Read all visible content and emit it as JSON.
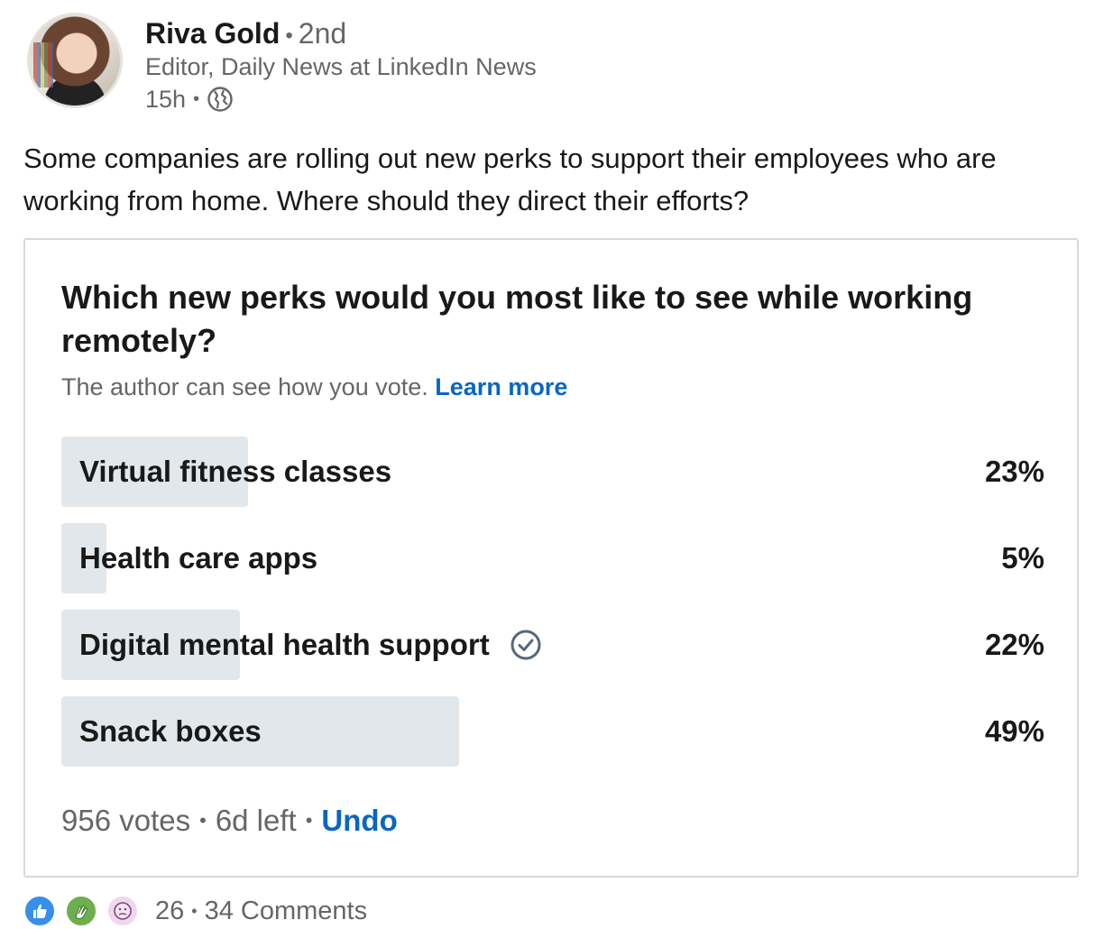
{
  "author": {
    "name": "Riva Gold",
    "degree": "2nd",
    "headline": "Editor, Daily News at LinkedIn News",
    "time": "15h",
    "visibility_icon": "globe-icon"
  },
  "post": {
    "text": "Some companies are rolling out new perks to support their employees who are working from home. Where should they direct their efforts?"
  },
  "poll": {
    "question": "Which new perks would you most like to see while working remotely?",
    "note": "The author can see how you vote.",
    "learn_more": "Learn more",
    "options": [
      {
        "label": "Virtual fitness classes",
        "percent_label": "23%",
        "percent": 23,
        "selected": false
      },
      {
        "label": "Health care apps",
        "percent_label": "5%",
        "percent": 5,
        "selected": false
      },
      {
        "label": "Digital mental health support",
        "percent_label": "22%",
        "percent": 22,
        "selected": true
      },
      {
        "label": "Snack boxes",
        "percent_label": "49%",
        "percent": 49,
        "selected": false
      }
    ],
    "votes": "956 votes",
    "time_left": "6d left",
    "undo": "Undo"
  },
  "social": {
    "reactions": [
      "like-icon",
      "celebrate-icon",
      "curious-icon"
    ],
    "reaction_count": "26",
    "comments": "34 Comments"
  },
  "colors": {
    "accent": "#0a66c2",
    "bar": "#e1e7eb",
    "muted_text": "#666666"
  }
}
